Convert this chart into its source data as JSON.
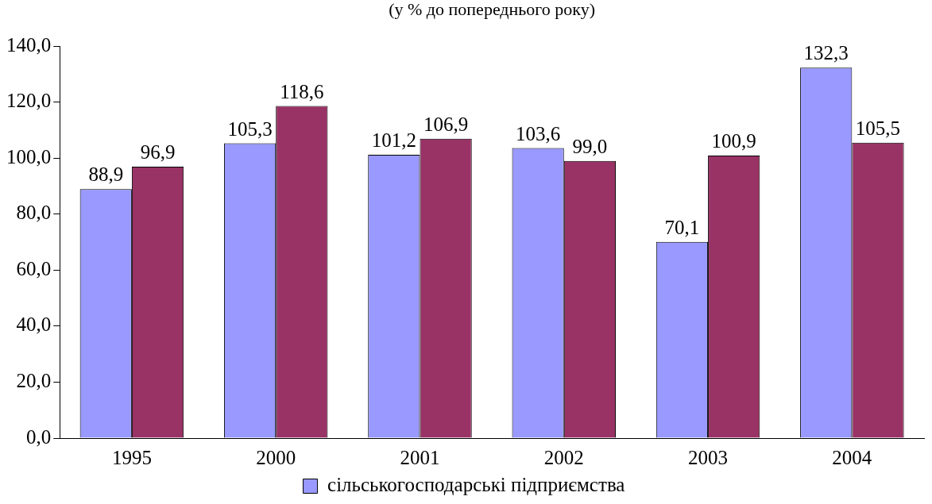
{
  "chart_data": {
    "type": "bar",
    "title": "(у % до попереднього року)",
    "categories": [
      "1995",
      "2000",
      "2001",
      "2002",
      "2003",
      "2004"
    ],
    "series": [
      {
        "name": "сільськогосподарські підприємства",
        "color": "#9999ff",
        "values": [
          88.9,
          105.3,
          101.2,
          103.6,
          70.1,
          132.3
        ],
        "value_labels": [
          "88,9",
          "105,3",
          "101,2",
          "103,6",
          "70,1",
          "132,3"
        ]
      },
      {
        "color": "#993366",
        "values": [
          96.9,
          118.6,
          106.9,
          99.0,
          100.9,
          105.5
        ],
        "value_labels": [
          "96,9",
          "118,6",
          "106,9",
          "99,0",
          "100,9",
          "105,5"
        ]
      }
    ],
    "ylim": [
      0,
      140
    ],
    "yticks": [
      {
        "value": 0,
        "label": "0,0"
      },
      {
        "value": 20,
        "label": "20,0"
      },
      {
        "value": 40,
        "label": "40,0"
      },
      {
        "value": 60,
        "label": "60,0"
      },
      {
        "value": 80,
        "label": "80,0"
      },
      {
        "value": 100,
        "label": "100,0"
      },
      {
        "value": 120,
        "label": "120,0"
      },
      {
        "value": 140,
        "label": "140,0"
      }
    ],
    "grid": false,
    "legend": "bottom"
  }
}
